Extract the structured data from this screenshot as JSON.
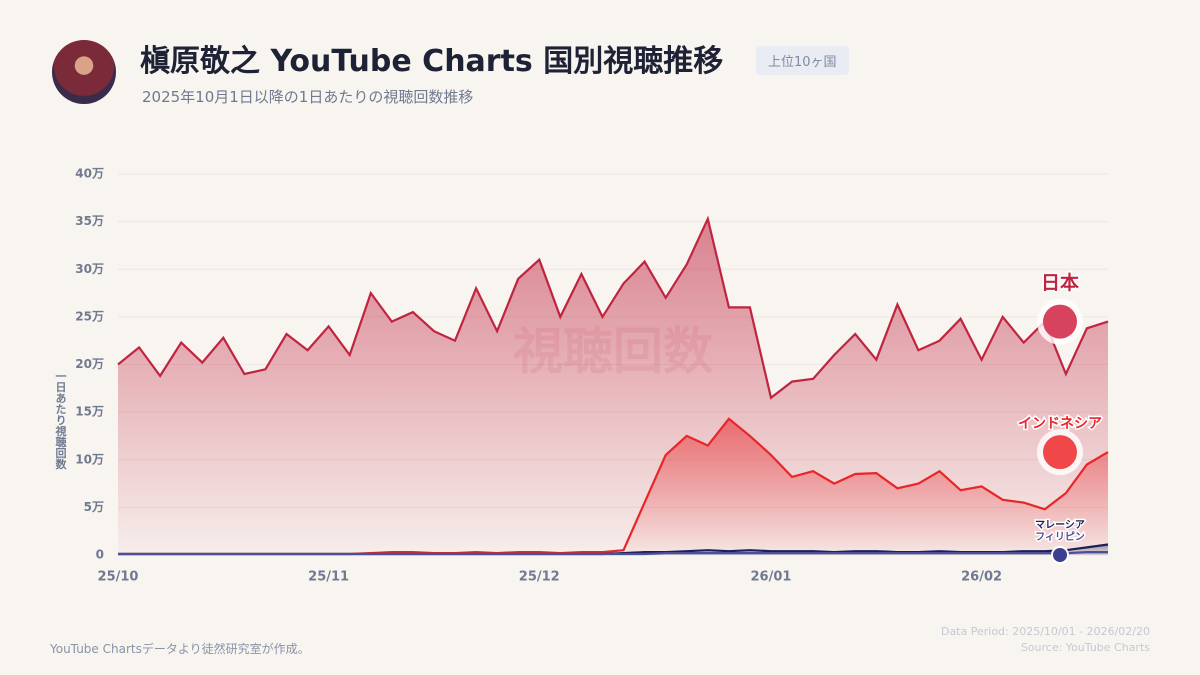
{
  "chart_data": {
    "type": "area",
    "title": "槇原敬之 YouTube Charts 国別視聴推移",
    "badge": "上位10ヶ国",
    "subtitle": "2025年10月1日以降の1日あたりの視聴回数推移",
    "y_label": "一日あたり視聴回数",
    "watermark": "視聴回数",
    "footnote": "YouTube Chartsデータより徒然研究室が作成。",
    "data_period": "Data Period: 2025/10/01 - 2026/02/20",
    "source": "Source: YouTube Charts",
    "categories": [
      "25/10",
      null,
      null,
      null,
      null,
      null,
      null,
      null,
      null,
      null,
      "25/11",
      null,
      null,
      null,
      null,
      null,
      null,
      null,
      null,
      null,
      "25/12",
      null,
      null,
      null,
      null,
      null,
      null,
      null,
      null,
      null,
      null,
      "26/01",
      null,
      null,
      null,
      null,
      null,
      null,
      null,
      null,
      null,
      "26/02",
      null,
      null,
      null,
      null,
      null,
      null
    ],
    "ylim": [
      0,
      40
    ],
    "yticks": [
      0,
      {
        "value": 5,
        "label": "5万"
      },
      {
        "value": 10,
        "label": "10万"
      },
      {
        "value": 15,
        "label": "15万"
      },
      {
        "value": 20,
        "label": "20万"
      },
      {
        "value": 25,
        "label": "25万"
      },
      {
        "value": 30,
        "label": "30万"
      },
      {
        "value": 35,
        "label": "35万"
      },
      {
        "value": 40,
        "label": "40万"
      }
    ],
    "grid": true,
    "series": [
      {
        "name": "日本",
        "color": "#c0243f",
        "values": [
          20,
          21.8,
          18.8,
          22.3,
          20.2,
          22.8,
          19,
          19.5,
          23.2,
          21.5,
          24,
          21,
          27.5,
          24.5,
          25.5,
          23.5,
          22.5,
          28,
          23.5,
          29,
          31,
          25,
          29.5,
          25,
          28.5,
          30.8,
          27,
          30.5,
          35.3,
          26,
          26,
          16.5,
          18.2,
          18.5,
          21,
          23.2,
          20.5,
          26.3,
          21.5,
          22.5,
          24.8,
          20.5,
          25,
          22.3,
          24.5,
          19,
          23.8,
          24.5
        ]
      },
      {
        "name": "インドネシア",
        "color": "#e8262a",
        "values": [
          0.1,
          0.1,
          0.1,
          0.1,
          0.1,
          0.1,
          0.1,
          0.1,
          0.1,
          0.1,
          0.1,
          0.1,
          0.2,
          0.3,
          0.3,
          0.2,
          0.2,
          0.3,
          0.2,
          0.3,
          0.3,
          0.2,
          0.3,
          0.3,
          0.5,
          5.5,
          10.5,
          12.5,
          11.5,
          14.3,
          12.5,
          10.5,
          8.2,
          8.8,
          7.5,
          8.5,
          8.6,
          7,
          7.5,
          8.8,
          6.8,
          7.2,
          5.8,
          5.5,
          4.8,
          6.5,
          9.5,
          10.8
        ]
      },
      {
        "name": "マレーシア",
        "color": "#1b1f5a",
        "values": [
          0.1,
          0.1,
          0.1,
          0.1,
          0.1,
          0.1,
          0.1,
          0.1,
          0.1,
          0.1,
          0.1,
          0.1,
          0.1,
          0.1,
          0.1,
          0.1,
          0.1,
          0.1,
          0.1,
          0.1,
          0.1,
          0.1,
          0.1,
          0.1,
          0.2,
          0.3,
          0.3,
          0.4,
          0.5,
          0.4,
          0.5,
          0.4,
          0.4,
          0.4,
          0.3,
          0.4,
          0.4,
          0.3,
          0.3,
          0.4,
          0.3,
          0.3,
          0.3,
          0.4,
          0.4,
          0.5,
          0.8,
          1.1
        ]
      },
      {
        "name": "フィリピン",
        "color": "#4a4f9a",
        "values": [
          0.1,
          0.1,
          0.1,
          0.1,
          0.1,
          0.1,
          0.1,
          0.1,
          0.1,
          0.1,
          0.1,
          0.1,
          0.1,
          0.1,
          0.1,
          0.1,
          0.1,
          0.1,
          0.1,
          0.1,
          0.1,
          0.1,
          0.1,
          0.1,
          0.1,
          0.1,
          0.2,
          0.2,
          0.2,
          0.2,
          0.2,
          0.2,
          0.2,
          0.2,
          0.2,
          0.2,
          0.2,
          0.2,
          0.2,
          0.2,
          0.2,
          0.2,
          0.2,
          0.2,
          0.2,
          0.2,
          0.3,
          0.3
        ]
      }
    ]
  }
}
